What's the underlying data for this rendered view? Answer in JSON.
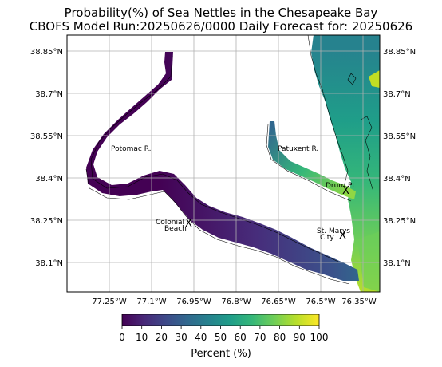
{
  "title": {
    "line1": "Probability(%) of Sea Nettles in the Chesapeake Bay",
    "line2": "CBOFS Model Run:20250626/0000 Daily Forecast for: 20250626"
  },
  "map": {
    "lat_ticks": [
      "38.85°N",
      "38.7°N",
      "38.55°N",
      "38.4°N",
      "38.25°N",
      "38.1°N"
    ],
    "lon_ticks": [
      "77.25°W",
      "77.1°W",
      "76.95°W",
      "76.8°W",
      "76.65°W",
      "76.5°W",
      "76.35°W"
    ],
    "places": [
      {
        "name": "Potomac R."
      },
      {
        "name": "Patuxent R."
      },
      {
        "name": "Drum Pt",
        "marker": "X"
      },
      {
        "name": "St. Marys City",
        "lines": [
          "St. Marys",
          "City"
        ],
        "marker": "X"
      },
      {
        "name": "Colonial Beach",
        "lines": [
          "Colonial",
          "Beach"
        ],
        "marker": "X"
      }
    ]
  },
  "colorbar": {
    "ticks": [
      "0",
      "10",
      "20",
      "30",
      "40",
      "50",
      "60",
      "70",
      "80",
      "90",
      "100"
    ],
    "label": "Percent (%)",
    "colormap": [
      "#440154",
      "#482878",
      "#3e4989",
      "#31688e",
      "#26828e",
      "#1f9e89",
      "#35b779",
      "#6ece58",
      "#b5de2b",
      "#fde725"
    ]
  }
}
